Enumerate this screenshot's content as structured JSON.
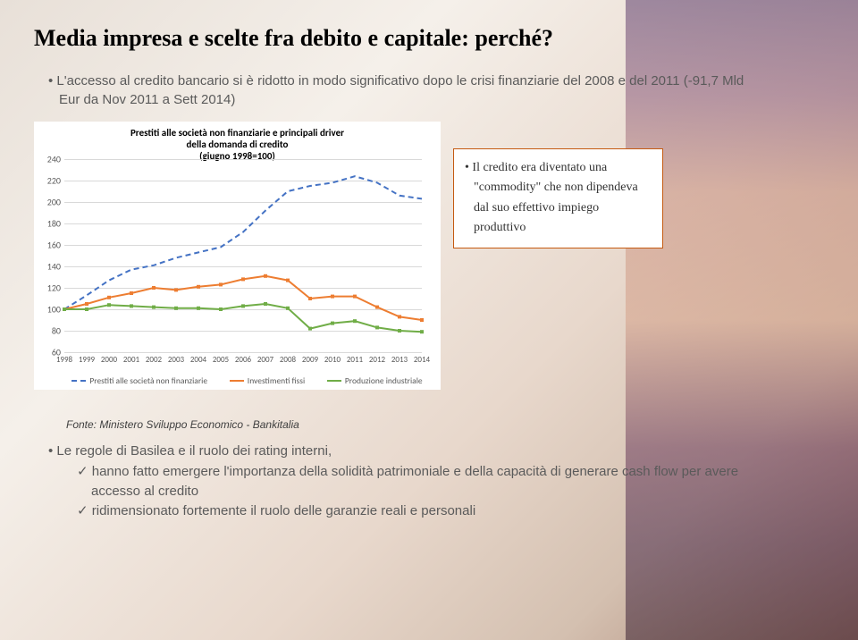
{
  "title": "Media impresa e scelte fra debito e capitale: perché?",
  "top_bullet": "L'accesso al credito bancario si è ridotto in modo significativo dopo le crisi finanziarie del 2008 e del 2011 (-91,7 Mld Eur da Nov 2011 a Sett 2014)",
  "chart": {
    "type": "line",
    "title_line1": "Prestiti alle società non finanziarie e principali driver",
    "title_line2": "della domanda di credito",
    "title_line3": "(giugno 1998=100)",
    "title_fontsize": 11,
    "label_fontsize": 10,
    "tick_fontsize": 9,
    "background_color": "#ffffff",
    "grid_color": "#d9d9d9",
    "ylim": [
      60,
      240
    ],
    "ytick_step": 20,
    "yticks": [
      60,
      80,
      100,
      120,
      140,
      160,
      180,
      200,
      220,
      240
    ],
    "x_categories": [
      "1998",
      "1999",
      "2000",
      "2001",
      "2002",
      "2003",
      "2004",
      "2005",
      "2006",
      "2007",
      "2008",
      "2009",
      "2010",
      "2011",
      "2012",
      "2013",
      "2014"
    ],
    "series": [
      {
        "name": "Prestiti alle società non finanziarie",
        "color": "#4472c4",
        "dash": "6,4",
        "width": 2,
        "values": [
          100,
          113,
          127,
          137,
          141,
          148,
          153,
          158,
          172,
          192,
          210,
          215,
          218,
          224,
          218,
          206,
          203
        ]
      },
      {
        "name": "Investimenti fissi",
        "color": "#ed7d31",
        "dash": "",
        "width": 2,
        "values": [
          100,
          105,
          111,
          115,
          120,
          118,
          121,
          123,
          128,
          131,
          127,
          110,
          112,
          112,
          102,
          93,
          90
        ]
      },
      {
        "name": "Produzione industriale",
        "color": "#70ad47",
        "dash": "",
        "width": 2,
        "values": [
          100,
          100,
          104,
          103,
          102,
          101,
          101,
          100,
          103,
          105,
          101,
          82,
          87,
          89,
          83,
          80,
          79
        ]
      }
    ]
  },
  "callout_text": "Il credito era diventato una \"commodity\" che non dipendeva dal suo effettivo impiego produttivo",
  "source": "Fonte: Ministero Sviluppo Economico - Bankitalia",
  "bottom": {
    "bullet": "Le regole di Basilea e il ruolo dei rating interni,",
    "sub1": "hanno fatto emergere l'importanza della solidità patrimoniale e della capacità di generare cash flow per avere accesso al credito",
    "sub2": "ridimensionato fortemente il ruolo delle garanzie reali e personali"
  },
  "legend_labels": [
    "Prestiti alle società non finanziarie",
    "Investimenti fissi",
    "Produzione industriale"
  ]
}
